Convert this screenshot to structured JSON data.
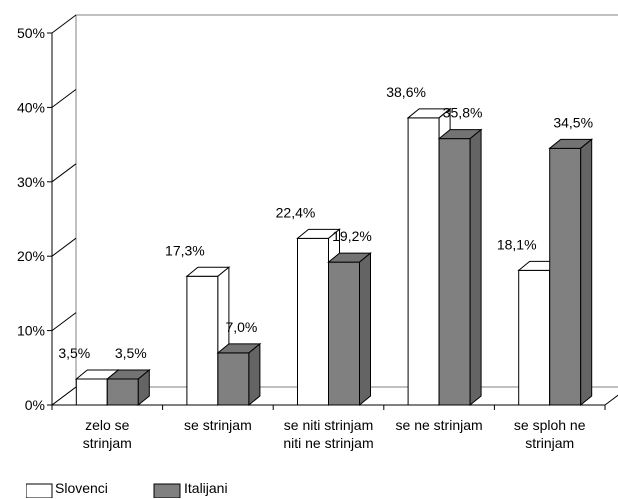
{
  "chart_data": {
    "type": "bar",
    "categories": [
      [
        "zelo se",
        "strinjam"
      ],
      [
        "se strinjam"
      ],
      [
        "se niti strinjam",
        "niti ne strinjam"
      ],
      [
        "se ne strinjam"
      ],
      [
        "se sploh ne",
        "strinjam"
      ]
    ],
    "series": [
      {
        "name": "Slovenci",
        "color": "#ffffff",
        "values": [
          3.5,
          17.3,
          22.4,
          38.6,
          18.1
        ],
        "labels": [
          "3,5%",
          "17,3%",
          "22,4%",
          "38,6%",
          "18,1%"
        ]
      },
      {
        "name": "Italijani",
        "color": "#808080",
        "values": [
          3.5,
          7.0,
          19.2,
          35.8,
          34.5
        ],
        "labels": [
          "3,5%",
          "7,0%",
          "19,2%",
          "35,8%",
          "34,5%"
        ]
      }
    ],
    "yticks": [
      "0%",
      "10%",
      "20%",
      "30%",
      "40%",
      "50%"
    ],
    "ylim": [
      0,
      50
    ],
    "title": "",
    "xlabel": "",
    "ylabel": "",
    "legend_position": "bottom-left",
    "style": "3d-clustered-column"
  }
}
